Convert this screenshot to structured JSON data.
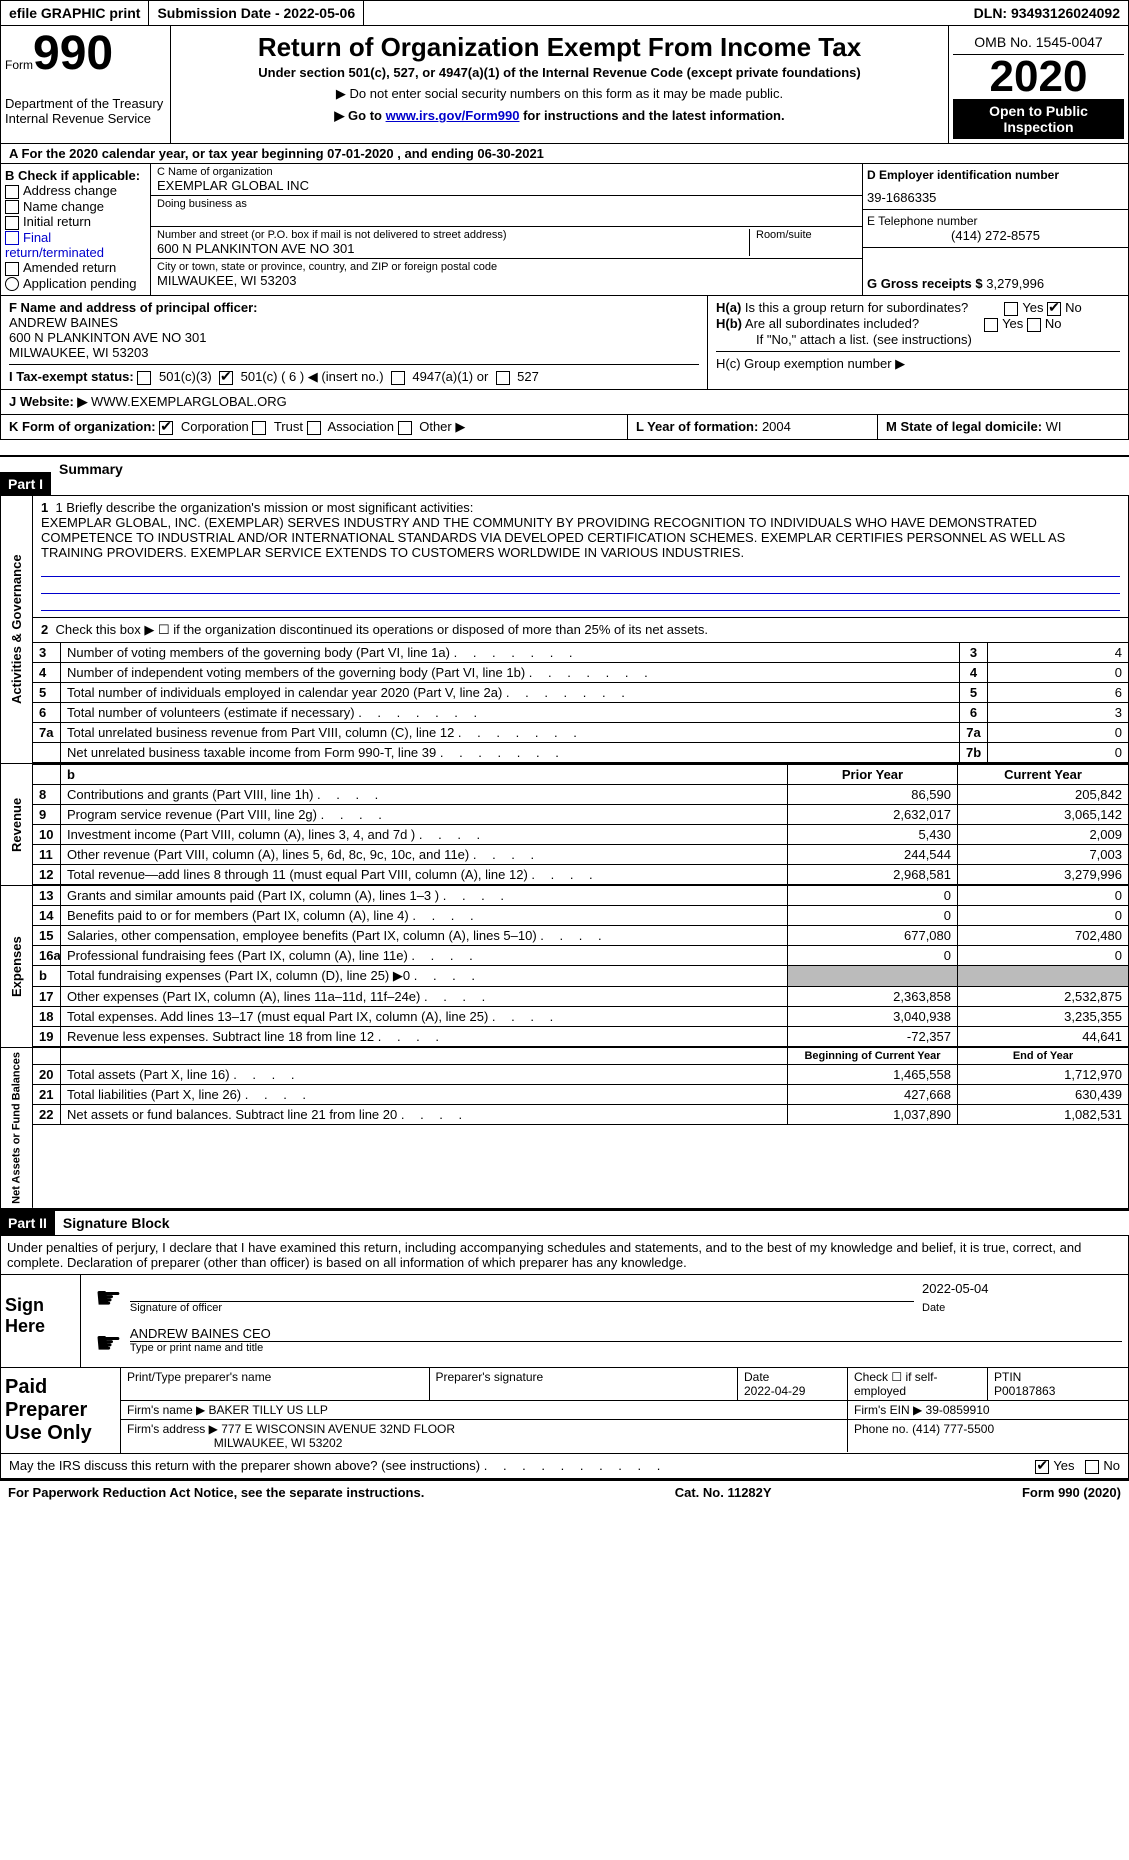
{
  "topbar": {
    "efile": "efile GRAPHIC print",
    "submission_label": "Submission Date - ",
    "submission_date": "2022-05-06",
    "dln_label": "DLN: ",
    "dln": "93493126024092"
  },
  "header": {
    "form_label": "Form",
    "form_no": "990",
    "dept1": "Department of the Treasury",
    "dept2": "Internal Revenue Service",
    "title": "Return of Organization Exempt From Income Tax",
    "subtitle": "Under section 501(c), 527, or 4947(a)(1) of the Internal Revenue Code (except private foundations)",
    "note1": "▶ Do not enter social security numbers on this form as it may be made public.",
    "note2_pre": "▶ Go to ",
    "note2_link": "www.irs.gov/Form990",
    "note2_post": " for instructions and the latest information.",
    "omb": "OMB No. 1545-0047",
    "year": "2020",
    "inspection": "Open to Public Inspection"
  },
  "rowA": "A For the 2020 calendar year, or tax year beginning 07-01-2020   , and ending 06-30-2021",
  "colB": {
    "label": "B Check if applicable:",
    "items": [
      "Address change",
      "Name change",
      "Initial return",
      "Final return/terminated",
      "Amended return",
      "Application pending"
    ]
  },
  "colC": {
    "c_label": "C Name of organization",
    "org_name": "EXEMPLAR GLOBAL INC",
    "dba_label": "Doing business as",
    "street_label": "Number and street (or P.O. box if mail is not delivered to street address)",
    "street": "600 N PLANKINTON AVE NO 301",
    "room_label": "Room/suite",
    "city_label": "City or town, state or province, country, and ZIP or foreign postal code",
    "city": "MILWAUKEE, WI  53203"
  },
  "colD": {
    "ein_label": "D Employer identification number",
    "ein": "39-1686335",
    "phone_label": "E Telephone number",
    "phone": "(414) 272-8575",
    "gross_label": "G Gross receipts $ ",
    "gross": "3,279,996"
  },
  "officer": {
    "f_label": "F  Name and address of principal officer:",
    "name": "ANDREW BAINES",
    "addr1": "600 N PLANKINTON AVE NO 301",
    "addr2": "MILWAUKEE, WI  53203",
    "ha_label": "H(a)  Is this a group return for subordinates?",
    "hb_label": "H(b)  Are all subordinates included?",
    "hb_note": "If \"No,\" attach a list. (see instructions)",
    "hc_label": "H(c)  Group exemption number ▶"
  },
  "exempt": {
    "i_label": "I   Tax-exempt status:",
    "opt1": "501(c)(3)",
    "opt2": "501(c) ( 6 ) ◀ (insert no.)",
    "opt3": "4947(a)(1) or",
    "opt4": "527"
  },
  "website": {
    "j_label": "J   Website: ▶",
    "url": "WWW.EXEMPLARGLOBAL.ORG"
  },
  "formorg": {
    "k_label": "K Form of organization:",
    "opts": [
      "Corporation",
      "Trust",
      "Association",
      "Other ▶"
    ],
    "l_label": "L Year of formation: ",
    "l_val": "2004",
    "m_label": "M State of legal domicile: ",
    "m_val": "WI"
  },
  "part1": {
    "header": "Part I",
    "title": "Summary"
  },
  "mission": {
    "line1_label": "1  Briefly describe the organization's mission or most significant activities:",
    "text": "EXEMPLAR GLOBAL, INC. (EXEMPLAR) SERVES INDUSTRY AND THE COMMUNITY BY PROVIDING RECOGNITION TO INDIVIDUALS WHO HAVE DEMONSTRATED COMPETENCE TO INDUSTRIAL AND/OR INTERNATIONAL STANDARDS VIA DEVELOPED CERTIFICATION SCHEMES. EXEMPLAR CERTIFIES PERSONNEL AS WELL AS TRAINING PROVIDERS. EXEMPLAR SERVICE EXTENDS TO CUSTOMERS WORLDWIDE IN VARIOUS INDUSTRIES."
  },
  "governance": {
    "label": "Activities & Governance",
    "line2": "Check this box ▶ ☐  if the organization discontinued its operations or disposed of more than 25% of its net assets.",
    "rows": [
      {
        "no": "3",
        "desc": "Number of voting members of the governing body (Part VI, line 1a)",
        "box": "3",
        "val": "4"
      },
      {
        "no": "4",
        "desc": "Number of independent voting members of the governing body (Part VI, line 1b)",
        "box": "4",
        "val": "0"
      },
      {
        "no": "5",
        "desc": "Total number of individuals employed in calendar year 2020 (Part V, line 2a)",
        "box": "5",
        "val": "6"
      },
      {
        "no": "6",
        "desc": "Total number of volunteers (estimate if necessary)",
        "box": "6",
        "val": "3"
      },
      {
        "no": "7a",
        "desc": "Total unrelated business revenue from Part VIII, column (C), line 12",
        "box": "7a",
        "val": "0"
      },
      {
        "no": "",
        "desc": "Net unrelated business taxable income from Form 990-T, line 39",
        "box": "7b",
        "val": "0"
      }
    ]
  },
  "revenue": {
    "label": "Revenue",
    "header_prior": "Prior Year",
    "header_current": "Current Year",
    "rows": [
      {
        "no": "8",
        "desc": "Contributions and grants (Part VIII, line 1h)",
        "prior": "86,590",
        "current": "205,842"
      },
      {
        "no": "9",
        "desc": "Program service revenue (Part VIII, line 2g)",
        "prior": "2,632,017",
        "current": "3,065,142"
      },
      {
        "no": "10",
        "desc": "Investment income (Part VIII, column (A), lines 3, 4, and 7d )",
        "prior": "5,430",
        "current": "2,009"
      },
      {
        "no": "11",
        "desc": "Other revenue (Part VIII, column (A), lines 5, 6d, 8c, 9c, 10c, and 11e)",
        "prior": "244,544",
        "current": "7,003"
      },
      {
        "no": "12",
        "desc": "Total revenue—add lines 8 through 11 (must equal Part VIII, column (A), line 12)",
        "prior": "2,968,581",
        "current": "3,279,996"
      }
    ]
  },
  "expenses": {
    "label": "Expenses",
    "rows": [
      {
        "no": "13",
        "desc": "Grants and similar amounts paid (Part IX, column (A), lines 1–3 )",
        "prior": "0",
        "current": "0"
      },
      {
        "no": "14",
        "desc": "Benefits paid to or for members (Part IX, column (A), line 4)",
        "prior": "0",
        "current": "0"
      },
      {
        "no": "15",
        "desc": "Salaries, other compensation, employee benefits (Part IX, column (A), lines 5–10)",
        "prior": "677,080",
        "current": "702,480"
      },
      {
        "no": "16a",
        "desc": "Professional fundraising fees (Part IX, column (A), line 11e)",
        "prior": "0",
        "current": "0"
      },
      {
        "no": "b",
        "desc": "Total fundraising expenses (Part IX, column (D), line 25) ▶0",
        "prior": "",
        "current": "",
        "gray": true
      },
      {
        "no": "17",
        "desc": "Other expenses (Part IX, column (A), lines 11a–11d, 11f–24e)",
        "prior": "2,363,858",
        "current": "2,532,875"
      },
      {
        "no": "18",
        "desc": "Total expenses. Add lines 13–17 (must equal Part IX, column (A), line 25)",
        "prior": "3,040,938",
        "current": "3,235,355"
      },
      {
        "no": "19",
        "desc": "Revenue less expenses. Subtract line 18 from line 12",
        "prior": "-72,357",
        "current": "44,641"
      }
    ]
  },
  "netassets": {
    "label": "Net Assets or Fund Balances",
    "header_begin": "Beginning of Current Year",
    "header_end": "End of Year",
    "rows": [
      {
        "no": "20",
        "desc": "Total assets (Part X, line 16)",
        "begin": "1,465,558",
        "end": "1,712,970"
      },
      {
        "no": "21",
        "desc": "Total liabilities (Part X, line 26)",
        "begin": "427,668",
        "end": "630,439"
      },
      {
        "no": "22",
        "desc": "Net assets or fund balances. Subtract line 21 from line 20",
        "begin": "1,037,890",
        "end": "1,082,531"
      }
    ]
  },
  "part2": {
    "header": "Part II",
    "title": "Signature Block"
  },
  "sig": {
    "perjury": "Under penalties of perjury, I declare that I have examined this return, including accompanying schedules and statements, and to the best of my knowledge and belief, it is true, correct, and complete. Declaration of preparer (other than officer) is based on all information of which preparer has any knowledge.",
    "sign_here": "Sign Here",
    "sig_officer": "Signature of officer",
    "date_label": "Date",
    "date": "2022-05-04",
    "officer_name": "ANDREW BAINES CEO",
    "type_name": "Type or print name and title"
  },
  "preparer": {
    "label": "Paid Preparer Use Only",
    "name_label": "Print/Type preparer's name",
    "sig_label": "Preparer's signature",
    "date_label": "Date",
    "date": "2022-04-29",
    "check_label": "Check ☐ if self-employed",
    "ptin_label": "PTIN",
    "ptin": "P00187863",
    "firm_name_label": "Firm's name    ▶ ",
    "firm_name": "BAKER TILLY US LLP",
    "firm_ein_label": "Firm's EIN ▶ ",
    "firm_ein": "39-0859910",
    "firm_addr_label": "Firm's address ▶ ",
    "firm_addr1": "777 E WISCONSIN AVENUE 32ND FLOOR",
    "firm_addr2": "MILWAUKEE, WI  53202",
    "phone_label": "Phone no. ",
    "phone": "(414) 777-5500"
  },
  "discuss": {
    "text": "May the IRS discuss this return with the preparer shown above? (see instructions)",
    "yes": "Yes",
    "no": "No"
  },
  "footer": {
    "left": "For Paperwork Reduction Act Notice, see the separate instructions.",
    "center": "Cat. No. 11282Y",
    "right": "Form 990 (2020)"
  }
}
